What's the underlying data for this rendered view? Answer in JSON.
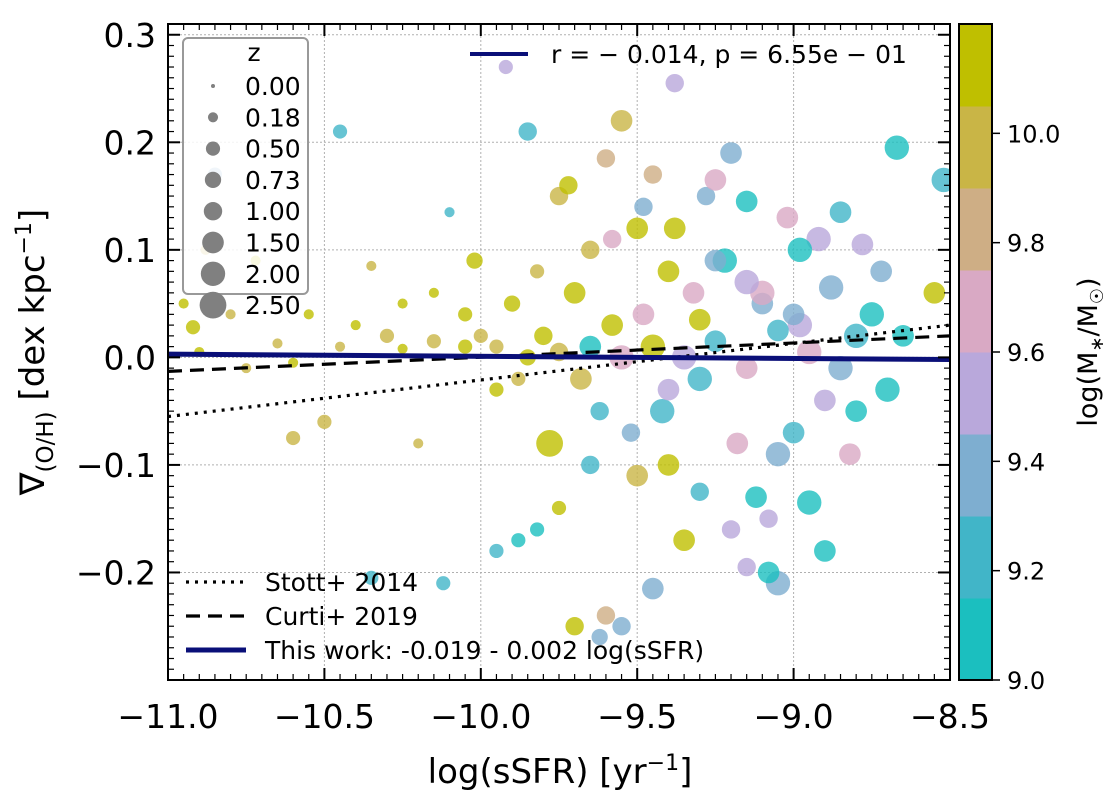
{
  "chart_data": {
    "type": "scatter",
    "xlabel": "log(sSFR) [yr⁻¹]",
    "ylabel": "∇(O/H) [dex kpc⁻¹]",
    "xlim": [
      -11.0,
      -8.5
    ],
    "ylim": [
      -0.3,
      0.31
    ],
    "xticks": [
      -11.0,
      -10.5,
      -10.0,
      -9.5,
      -9.0,
      -8.5
    ],
    "xtick_labels": [
      "−11.0",
      "−10.5",
      "−10.0",
      "−9.5",
      "−9.0",
      "−8.5"
    ],
    "yticks": [
      -0.2,
      -0.1,
      0.0,
      0.1,
      0.2,
      0.3
    ],
    "ytick_labels": [
      "−0.2",
      "−0.1",
      "0.0",
      "0.1",
      "0.2",
      "0.3"
    ],
    "grid": true,
    "size_legend": {
      "title": "z",
      "entries": [
        {
          "z": 0.0,
          "label": "0.00"
        },
        {
          "z": 0.18,
          "label": "0.18"
        },
        {
          "z": 0.5,
          "label": "0.50"
        },
        {
          "z": 0.73,
          "label": "0.73"
        },
        {
          "z": 1.0,
          "label": "1.00"
        },
        {
          "z": 1.5,
          "label": "1.50"
        },
        {
          "z": 2.0,
          "label": "2.00"
        },
        {
          "z": 2.5,
          "label": "2.50"
        }
      ]
    },
    "annotation": "r = − 0.014,  p = 6.55e − 01",
    "annotation_color": "#0a0f78",
    "lines": [
      {
        "name": "Stott+ 2014",
        "style": "dotted",
        "color": "#000000",
        "x": [
          -11.0,
          -8.5
        ],
        "y": [
          -0.055,
          0.03
        ]
      },
      {
        "name": "Curti+ 2019",
        "style": "dashed",
        "color": "#000000",
        "x": [
          -11.0,
          -8.5
        ],
        "y": [
          -0.013,
          0.02
        ]
      },
      {
        "name": "This work: -0.019 - 0.002 log(sSFR)",
        "style": "solid",
        "color": "#0a0f78",
        "x": [
          -11.0,
          -8.5
        ],
        "y": [
          0.003,
          -0.002
        ]
      }
    ],
    "colorbar": {
      "label": "log(M*/M☉)",
      "range": [
        9.0,
        10.2
      ],
      "ticks": [
        9.0,
        9.2,
        9.4,
        9.6,
        9.8,
        10.0
      ],
      "tick_labels": [
        "9.0",
        "9.2",
        "9.4",
        "9.6",
        "9.8",
        "10.0"
      ],
      "colors": [
        "#1bbfbf",
        "#41b5c8",
        "#7eaed0",
        "#b9a8db",
        "#d9a9c4",
        "#ceae85",
        "#c9b546",
        "#bfbf00"
      ]
    },
    "points": [
      {
        "x": -10.95,
        "y": 0.05,
        "z": 0.18,
        "m": 10.1
      },
      {
        "x": -10.92,
        "y": 0.028,
        "z": 0.5,
        "m": 10.1
      },
      {
        "x": -10.88,
        "y": 0.1,
        "z": 0.18,
        "m": 10.0
      },
      {
        "x": -10.85,
        "y": 0.17,
        "z": 0.5,
        "m": 9.3
      },
      {
        "x": -10.8,
        "y": 0.04,
        "z": 0.18,
        "m": 10.0
      },
      {
        "x": -10.72,
        "y": 0.09,
        "z": 0.18,
        "m": 10.1
      },
      {
        "x": -10.65,
        "y": 0.013,
        "z": 0.18,
        "m": 10.0
      },
      {
        "x": -10.6,
        "y": -0.075,
        "z": 0.5,
        "m": 10.0
      },
      {
        "x": -10.55,
        "y": 0.04,
        "z": 0.18,
        "m": 10.1
      },
      {
        "x": -10.5,
        "y": -0.06,
        "z": 0.5,
        "m": 10.0
      },
      {
        "x": -10.45,
        "y": 0.21,
        "z": 0.5,
        "m": 9.2
      },
      {
        "x": -10.4,
        "y": 0.03,
        "z": 0.18,
        "m": 10.1
      },
      {
        "x": -10.35,
        "y": 0.085,
        "z": 0.18,
        "m": 10.0
      },
      {
        "x": -10.3,
        "y": 0.02,
        "z": 0.5,
        "m": 9.9
      },
      {
        "x": -10.25,
        "y": 0.05,
        "z": 0.18,
        "m": 10.1
      },
      {
        "x": -10.2,
        "y": -0.08,
        "z": 0.18,
        "m": 10.0
      },
      {
        "x": -10.15,
        "y": 0.06,
        "z": 0.18,
        "m": 10.1
      },
      {
        "x": -10.1,
        "y": 0.135,
        "z": 0.18,
        "m": 9.2
      },
      {
        "x": -10.05,
        "y": 0.04,
        "z": 0.5,
        "m": 10.1
      },
      {
        "x": -10.02,
        "y": 0.09,
        "z": 0.73,
        "m": 10.1
      },
      {
        "x": -10.0,
        "y": 0.02,
        "z": 0.5,
        "m": 10.0
      },
      {
        "x": -9.95,
        "y": -0.03,
        "z": 0.5,
        "m": 10.1
      },
      {
        "x": -9.92,
        "y": 0.27,
        "z": 0.5,
        "m": 9.5
      },
      {
        "x": -9.9,
        "y": 0.05,
        "z": 0.73,
        "m": 10.1
      },
      {
        "x": -9.88,
        "y": -0.02,
        "z": 0.5,
        "m": 9.9
      },
      {
        "x": -9.85,
        "y": 0.21,
        "z": 1.0,
        "m": 9.2
      },
      {
        "x": -9.82,
        "y": 0.08,
        "z": 0.5,
        "m": 10.0
      },
      {
        "x": -9.8,
        "y": 0.02,
        "z": 1.0,
        "m": 10.1
      },
      {
        "x": -9.78,
        "y": -0.08,
        "z": 2.5,
        "m": 10.1
      },
      {
        "x": -9.75,
        "y": 0.15,
        "z": 1.0,
        "m": 10.0
      },
      {
        "x": -9.72,
        "y": 0.16,
        "z": 1.0,
        "m": 10.1
      },
      {
        "x": -9.7,
        "y": 0.06,
        "z": 1.5,
        "m": 10.1
      },
      {
        "x": -9.68,
        "y": -0.02,
        "z": 1.5,
        "m": 9.9
      },
      {
        "x": -9.65,
        "y": 0.1,
        "z": 1.0,
        "m": 10.0
      },
      {
        "x": -9.62,
        "y": -0.05,
        "z": 1.0,
        "m": 9.2
      },
      {
        "x": -9.6,
        "y": 0.185,
        "z": 1.0,
        "m": 9.8
      },
      {
        "x": -9.58,
        "y": 0.03,
        "z": 1.5,
        "m": 10.1
      },
      {
        "x": -9.55,
        "y": 0.22,
        "z": 1.5,
        "m": 9.9
      },
      {
        "x": -9.52,
        "y": -0.07,
        "z": 1.0,
        "m": 9.3
      },
      {
        "x": -9.5,
        "y": 0.12,
        "z": 1.5,
        "m": 10.1
      },
      {
        "x": -9.48,
        "y": 0.04,
        "z": 1.5,
        "m": 9.7
      },
      {
        "x": -9.45,
        "y": 0.17,
        "z": 1.0,
        "m": 9.8
      },
      {
        "x": -9.42,
        "y": -0.05,
        "z": 2.0,
        "m": 9.2
      },
      {
        "x": -9.4,
        "y": 0.08,
        "z": 1.5,
        "m": 10.1
      },
      {
        "x": -9.38,
        "y": 0.255,
        "z": 1.0,
        "m": 9.5
      },
      {
        "x": -9.35,
        "y": -0.17,
        "z": 1.5,
        "m": 10.1
      },
      {
        "x": -9.32,
        "y": 0.06,
        "z": 1.5,
        "m": 9.6
      },
      {
        "x": -9.3,
        "y": -0.02,
        "z": 2.0,
        "m": 9.2
      },
      {
        "x": -9.28,
        "y": 0.15,
        "z": 1.0,
        "m": 9.4
      },
      {
        "x": -9.25,
        "y": 0.165,
        "z": 1.5,
        "m": 9.7
      },
      {
        "x": -9.22,
        "y": 0.09,
        "z": 2.0,
        "m": 9.1
      },
      {
        "x": -9.2,
        "y": 0.19,
        "z": 1.5,
        "m": 9.3
      },
      {
        "x": -9.18,
        "y": -0.08,
        "z": 1.5,
        "m": 9.6
      },
      {
        "x": -9.15,
        "y": 0.145,
        "z": 1.5,
        "m": 9.1
      },
      {
        "x": -9.12,
        "y": -0.13,
        "z": 1.5,
        "m": 9.1
      },
      {
        "x": -9.1,
        "y": 0.05,
        "z": 1.5,
        "m": 9.4
      },
      {
        "x": -9.08,
        "y": -0.15,
        "z": 1.0,
        "m": 9.5
      },
      {
        "x": -9.05,
        "y": -0.09,
        "z": 2.0,
        "m": 9.3
      },
      {
        "x": -9.02,
        "y": 0.13,
        "z": 1.5,
        "m": 9.7
      },
      {
        "x": -9.0,
        "y": -0.07,
        "z": 1.5,
        "m": 9.2
      },
      {
        "x": -8.98,
        "y": 0.03,
        "z": 2.0,
        "m": 9.5
      },
      {
        "x": -8.95,
        "y": -0.135,
        "z": 2.0,
        "m": 9.1
      },
      {
        "x": -8.92,
        "y": 0.11,
        "z": 2.0,
        "m": 9.5
      },
      {
        "x": -8.9,
        "y": -0.18,
        "z": 1.5,
        "m": 9.1
      },
      {
        "x": -8.88,
        "y": 0.065,
        "z": 2.0,
        "m": 9.4
      },
      {
        "x": -8.85,
        "y": 0.135,
        "z": 1.5,
        "m": 9.2
      },
      {
        "x": -8.82,
        "y": -0.09,
        "z": 1.5,
        "m": 9.6
      },
      {
        "x": -8.8,
        "y": -0.05,
        "z": 1.5,
        "m": 9.1
      },
      {
        "x": -8.78,
        "y": 0.105,
        "z": 1.5,
        "m": 9.5
      },
      {
        "x": -8.75,
        "y": 0.04,
        "z": 2.0,
        "m": 9.1
      },
      {
        "x": -8.72,
        "y": 0.08,
        "z": 1.5,
        "m": 9.4
      },
      {
        "x": -8.7,
        "y": -0.03,
        "z": 2.0,
        "m": 9.1
      },
      {
        "x": -8.67,
        "y": 0.195,
        "z": 2.0,
        "m": 9.1
      },
      {
        "x": -8.65,
        "y": 0.02,
        "z": 1.5,
        "m": 9.1
      },
      {
        "x": -8.55,
        "y": 0.06,
        "z": 1.5,
        "m": 10.1
      },
      {
        "x": -8.52,
        "y": 0.165,
        "z": 2.0,
        "m": 9.2
      },
      {
        "x": -9.05,
        "y": -0.21,
        "z": 2.0,
        "m": 9.4
      },
      {
        "x": -9.08,
        "y": -0.2,
        "z": 1.5,
        "m": 9.1
      },
      {
        "x": -9.15,
        "y": -0.195,
        "z": 1.0,
        "m": 9.5
      },
      {
        "x": -9.2,
        "y": -0.16,
        "z": 1.0,
        "m": 9.5
      },
      {
        "x": -9.6,
        "y": -0.24,
        "z": 1.0,
        "m": 9.8
      },
      {
        "x": -9.55,
        "y": -0.25,
        "z": 1.0,
        "m": 9.3
      },
      {
        "x": -9.62,
        "y": -0.26,
        "z": 0.73,
        "m": 9.3
      },
      {
        "x": -9.45,
        "y": -0.215,
        "z": 1.5,
        "m": 9.3
      },
      {
        "x": -9.7,
        "y": -0.25,
        "z": 1.0,
        "m": 10.1
      },
      {
        "x": -9.82,
        "y": -0.16,
        "z": 0.5,
        "m": 9.1
      },
      {
        "x": -10.12,
        "y": -0.21,
        "z": 0.5,
        "m": 9.2
      },
      {
        "x": -10.35,
        "y": -0.205,
        "z": 0.5,
        "m": 9.2
      },
      {
        "x": -9.95,
        "y": -0.18,
        "z": 0.5,
        "m": 9.2
      },
      {
        "x": -9.88,
        "y": -0.17,
        "z": 0.5,
        "m": 9.1
      },
      {
        "x": -9.75,
        "y": -0.14,
        "z": 0.5,
        "m": 10.1
      },
      {
        "x": -9.65,
        "y": 0.01,
        "z": 1.5,
        "m": 9.1
      },
      {
        "x": -9.55,
        "y": 0.0,
        "z": 2.0,
        "m": 9.7
      },
      {
        "x": -9.45,
        "y": 0.01,
        "z": 2.0,
        "m": 10.1
      },
      {
        "x": -9.35,
        "y": 0.0,
        "z": 2.0,
        "m": 9.5
      },
      {
        "x": -9.25,
        "y": 0.015,
        "z": 1.5,
        "m": 9.2
      },
      {
        "x": -9.15,
        "y": -0.01,
        "z": 1.5,
        "m": 9.7
      },
      {
        "x": -9.05,
        "y": 0.025,
        "z": 1.5,
        "m": 9.2
      },
      {
        "x": -8.95,
        "y": 0.005,
        "z": 2.0,
        "m": 9.6
      },
      {
        "x": -9.75,
        "y": 0.005,
        "z": 1.0,
        "m": 10.0
      },
      {
        "x": -9.85,
        "y": 0.0,
        "z": 0.73,
        "m": 10.1
      },
      {
        "x": -9.95,
        "y": 0.01,
        "z": 0.5,
        "m": 10.0
      },
      {
        "x": -10.05,
        "y": 0.01,
        "z": 0.5,
        "m": 10.1
      },
      {
        "x": -10.15,
        "y": 0.015,
        "z": 0.5,
        "m": 10.0
      },
      {
        "x": -10.25,
        "y": 0.008,
        "z": 0.18,
        "m": 10.1
      },
      {
        "x": -10.45,
        "y": 0.01,
        "z": 0.18,
        "m": 10.0
      },
      {
        "x": -10.6,
        "y": -0.005,
        "z": 0.18,
        "m": 10.1
      },
      {
        "x": -10.75,
        "y": -0.01,
        "z": 0.18,
        "m": 10.0
      },
      {
        "x": -10.9,
        "y": 0.005,
        "z": 0.18,
        "m": 10.1
      },
      {
        "x": -9.4,
        "y": -0.03,
        "z": 1.5,
        "m": 9.5
      },
      {
        "x": -9.3,
        "y": 0.035,
        "z": 1.5,
        "m": 10.1
      },
      {
        "x": -9.1,
        "y": 0.06,
        "z": 2.0,
        "m": 9.6
      },
      {
        "x": -9.0,
        "y": 0.04,
        "z": 1.5,
        "m": 9.3
      },
      {
        "x": -8.9,
        "y": -0.04,
        "z": 1.5,
        "m": 9.5
      },
      {
        "x": -8.85,
        "y": -0.01,
        "z": 2.0,
        "m": 9.3
      },
      {
        "x": -9.5,
        "y": -0.11,
        "z": 1.5,
        "m": 9.9
      },
      {
        "x": -9.4,
        "y": -0.1,
        "z": 1.5,
        "m": 10.1
      },
      {
        "x": -9.3,
        "y": -0.125,
        "z": 1.0,
        "m": 9.2
      },
      {
        "x": -9.65,
        "y": -0.1,
        "z": 1.0,
        "m": 9.2
      },
      {
        "x": -9.58,
        "y": 0.11,
        "z": 1.0,
        "m": 9.6
      },
      {
        "x": -9.48,
        "y": 0.14,
        "z": 1.0,
        "m": 9.4
      },
      {
        "x": -9.38,
        "y": 0.12,
        "z": 1.5,
        "m": 10.1
      },
      {
        "x": -9.25,
        "y": 0.09,
        "z": 1.5,
        "m": 9.4
      },
      {
        "x": -9.15,
        "y": 0.07,
        "z": 2.0,
        "m": 9.5
      },
      {
        "x": -8.98,
        "y": 0.1,
        "z": 2.0,
        "m": 9.1
      },
      {
        "x": -8.8,
        "y": 0.02,
        "z": 2.0,
        "m": 9.2
      }
    ]
  }
}
